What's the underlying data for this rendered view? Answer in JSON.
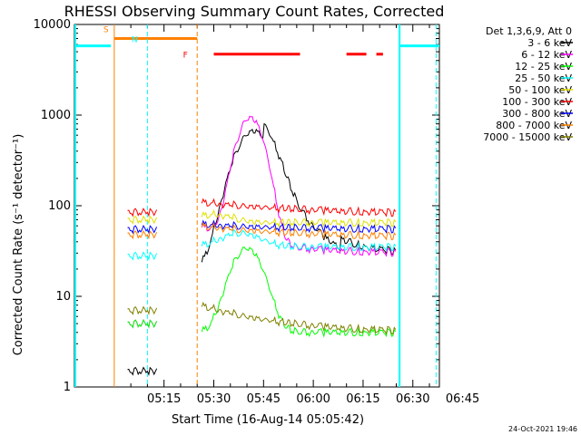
{
  "chart_data": {
    "type": "line",
    "title": "RHESSI Observing Summary Count Rates, Corrected",
    "ylabel": "Corrected Count Rate (s⁻¹ detector⁻¹)",
    "xlabel": "Start Time (16-Aug-14 05:05:42)",
    "yscale": "log",
    "ylim": [
      1,
      10000
    ],
    "xlim_minutes": [
      -12,
      98
    ],
    "x_ticks": [
      {
        "label": "05:15",
        "minute": 15
      },
      {
        "label": "05:30",
        "minute": 30
      },
      {
        "label": "05:45",
        "minute": 45
      },
      {
        "label": "06:00",
        "minute": 60
      },
      {
        "label": "06:15",
        "minute": 75
      },
      {
        "label": "06:30",
        "minute": 90
      },
      {
        "label": "06:45",
        "minute": 105
      }
    ],
    "y_ticks": [
      "1",
      "10",
      "100",
      "1000",
      "10000"
    ],
    "legend_header": "Det 1,3,6,9, Att 0",
    "series": [
      {
        "name": "3 - 6 keV",
        "color": "#000000"
      },
      {
        "name": "6 - 12 keV",
        "color": "#ff00ff"
      },
      {
        "name": "12 - 25 keV",
        "color": "#00ff00"
      },
      {
        "name": "25 - 50 keV",
        "color": "#00ffff"
      },
      {
        "name": "50 - 100 keV",
        "color": "#e0e000"
      },
      {
        "name": "100 - 300 keV",
        "color": "#ff0000"
      },
      {
        "name": "300 - 800 keV",
        "color": "#0000ff"
      },
      {
        "name": "800 - 7000 keV",
        "color": "#ff8000"
      },
      {
        "name": "7000 - 15000 keV",
        "color": "#808000"
      }
    ],
    "flags": [
      {
        "label": "S",
        "color": "#ff8000"
      },
      {
        "label": "N",
        "color": "#00ffff"
      },
      {
        "label": "F",
        "color": "#ff0000"
      }
    ],
    "footer_date": "24-Oct-2021 19:46"
  }
}
